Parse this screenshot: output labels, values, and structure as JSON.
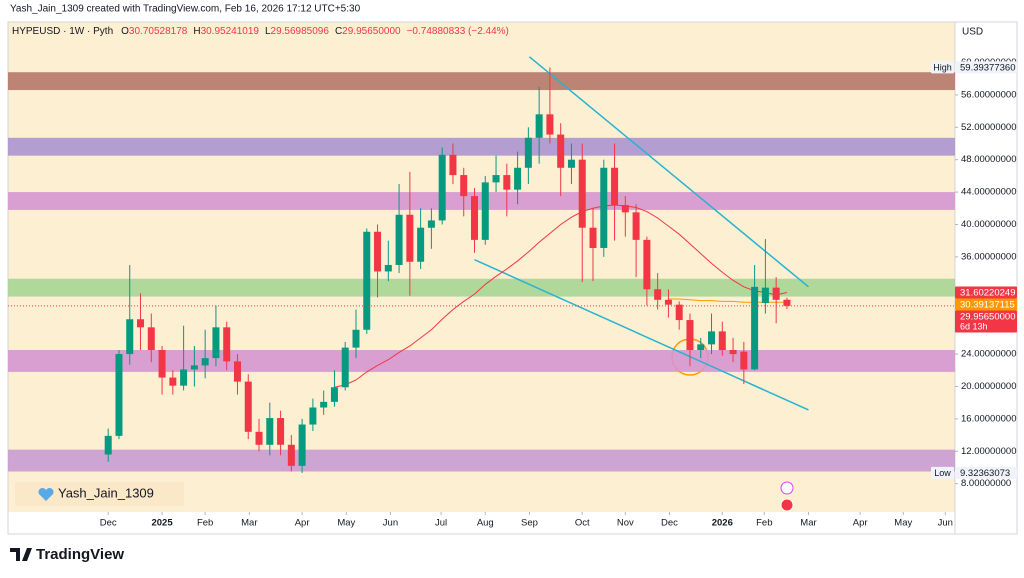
{
  "chart_data": {
    "type": "candlestick",
    "credit": "Yash_Jain_1309 created with TradingView.com, Feb 16, 2026 17:12 UTC+5:30",
    "symbol": "HYPEUSD · 1W · Pyth",
    "ohlc": [
      {
        "key": "O",
        "value": "30.70528178"
      },
      {
        "key": "H",
        "value": "30.95241019"
      },
      {
        "key": "L",
        "value": "29.56985096"
      },
      {
        "key": "C",
        "value": "29.95650000"
      }
    ],
    "change": "−0.74880833 (−2.44%)",
    "currency": "USD",
    "watermark": "Yash_Jain_1309",
    "brand": "TradingView",
    "ylim": [
      4.5,
      65
    ],
    "yticks": [
      {
        "value": 8,
        "label": "8.00000000"
      },
      {
        "value": 12,
        "label": "12.00000000"
      },
      {
        "value": 16,
        "label": "16.00000000"
      },
      {
        "value": 20,
        "label": "20.00000000"
      },
      {
        "value": 24,
        "label": "24.00000000"
      },
      {
        "value": 36,
        "label": "36.00000000"
      },
      {
        "value": 40,
        "label": "40.00000000"
      },
      {
        "value": 44,
        "label": "44.00000000"
      },
      {
        "value": 48,
        "label": "48.00000000"
      },
      {
        "value": 52,
        "label": "52.00000000"
      },
      {
        "value": 56,
        "label": "56.00000000"
      },
      {
        "value": 60,
        "label": "60.00000000"
      }
    ],
    "xlim": [
      -9.3,
      78.6
    ],
    "xticks": [
      {
        "value": 0,
        "label": "Dec"
      },
      {
        "value": 5,
        "label": "2025"
      },
      {
        "value": 9,
        "label": "Feb"
      },
      {
        "value": 13.1,
        "label": "Mar"
      },
      {
        "value": 18,
        "label": "Apr"
      },
      {
        "value": 22.1,
        "label": "May"
      },
      {
        "value": 26.2,
        "label": "Jun"
      },
      {
        "value": 30.9,
        "label": "Jul"
      },
      {
        "value": 35,
        "label": "Aug"
      },
      {
        "value": 39.1,
        "label": "Sep"
      },
      {
        "value": 44,
        "label": "Oct"
      },
      {
        "value": 48,
        "label": "Nov"
      },
      {
        "value": 52.1,
        "label": "Dec"
      },
      {
        "value": 57,
        "label": "2026"
      },
      {
        "value": 60.9,
        "label": "Feb"
      },
      {
        "value": 65,
        "label": "Mar"
      },
      {
        "value": 69.8,
        "label": "Apr"
      },
      {
        "value": 73.8,
        "label": "May"
      },
      {
        "value": 77.7,
        "label": "Jun"
      }
    ],
    "up_color": "#089981",
    "down_color": "#f23645",
    "candles": [
      {
        "o": 11.6,
        "h": 14.8,
        "l": 10.7,
        "c": 13.9
      },
      {
        "o": 13.9,
        "h": 24.5,
        "l": 13.5,
        "c": 24.0
      },
      {
        "o": 24.0,
        "h": 35.0,
        "l": 22.7,
        "c": 28.3
      },
      {
        "o": 28.3,
        "h": 31.5,
        "l": 24.5,
        "c": 27.3
      },
      {
        "o": 27.3,
        "h": 29.0,
        "l": 23.0,
        "c": 24.5
      },
      {
        "o": 24.5,
        "h": 25.0,
        "l": 19.0,
        "c": 21.1
      },
      {
        "o": 21.1,
        "h": 22.0,
        "l": 19.0,
        "c": 20.1
      },
      {
        "o": 20.1,
        "h": 27.5,
        "l": 19.5,
        "c": 22.1
      },
      {
        "o": 22.1,
        "h": 25.0,
        "l": 20.0,
        "c": 22.6
      },
      {
        "o": 22.6,
        "h": 27.0,
        "l": 21.0,
        "c": 23.5
      },
      {
        "o": 23.5,
        "h": 30.0,
        "l": 22.5,
        "c": 27.3
      },
      {
        "o": 27.3,
        "h": 28.0,
        "l": 22.0,
        "c": 23.1
      },
      {
        "o": 23.1,
        "h": 24.0,
        "l": 19.0,
        "c": 20.6
      },
      {
        "o": 20.6,
        "h": 21.5,
        "l": 13.5,
        "c": 14.4
      },
      {
        "o": 14.4,
        "h": 16.0,
        "l": 12.0,
        "c": 12.8
      },
      {
        "o": 12.8,
        "h": 18.0,
        "l": 11.5,
        "c": 16.1
      },
      {
        "o": 16.1,
        "h": 17.0,
        "l": 11.5,
        "c": 12.8
      },
      {
        "o": 12.8,
        "h": 14.0,
        "l": 9.5,
        "c": 10.2
      },
      {
        "o": 10.2,
        "h": 16.0,
        "l": 9.32363073,
        "c": 15.3
      },
      {
        "o": 15.3,
        "h": 18.5,
        "l": 14.5,
        "c": 17.4
      },
      {
        "o": 17.4,
        "h": 19.5,
        "l": 16.5,
        "c": 18.1
      },
      {
        "o": 18.1,
        "h": 22.0,
        "l": 17.5,
        "c": 19.9
      },
      {
        "o": 19.9,
        "h": 25.5,
        "l": 19.5,
        "c": 24.8
      },
      {
        "o": 24.8,
        "h": 29.5,
        "l": 23.5,
        "c": 27.0
      },
      {
        "o": 27.0,
        "h": 39.5,
        "l": 26.5,
        "c": 39.1
      },
      {
        "o": 39.1,
        "h": 40.0,
        "l": 31.0,
        "c": 34.2
      },
      {
        "o": 34.2,
        "h": 38.0,
        "l": 33.0,
        "c": 35.0
      },
      {
        "o": 35.0,
        "h": 45.0,
        "l": 34.0,
        "c": 41.2
      },
      {
        "o": 41.2,
        "h": 46.5,
        "l": 31.2,
        "c": 35.4
      },
      {
        "o": 35.4,
        "h": 42.0,
        "l": 34.5,
        "c": 39.6
      },
      {
        "o": 39.6,
        "h": 42.0,
        "l": 37.0,
        "c": 40.5
      },
      {
        "o": 40.5,
        "h": 49.5,
        "l": 40.0,
        "c": 48.6
      },
      {
        "o": 48.6,
        "h": 50.0,
        "l": 45.0,
        "c": 46.1
      },
      {
        "o": 46.1,
        "h": 47.0,
        "l": 41.0,
        "c": 43.5
      },
      {
        "o": 43.5,
        "h": 44.5,
        "l": 36.5,
        "c": 38.1
      },
      {
        "o": 38.1,
        "h": 46.0,
        "l": 37.5,
        "c": 45.2
      },
      {
        "o": 45.2,
        "h": 48.5,
        "l": 44.0,
        "c": 46.1
      },
      {
        "o": 46.1,
        "h": 47.5,
        "l": 41.0,
        "c": 44.3
      },
      {
        "o": 44.3,
        "h": 49.0,
        "l": 42.5,
        "c": 47.0
      },
      {
        "o": 47.0,
        "h": 52.0,
        "l": 45.0,
        "c": 50.7
      },
      {
        "o": 50.7,
        "h": 57.0,
        "l": 47.5,
        "c": 53.6
      },
      {
        "o": 53.6,
        "h": 59.3937736,
        "l": 50.0,
        "c": 51.1
      },
      {
        "o": 51.1,
        "h": 52.5,
        "l": 43.5,
        "c": 47.0
      },
      {
        "o": 47.0,
        "h": 50.0,
        "l": 45.0,
        "c": 48.0
      },
      {
        "o": 48.0,
        "h": 50.0,
        "l": 32.9,
        "c": 39.6
      },
      {
        "o": 39.6,
        "h": 42.0,
        "l": 33.0,
        "c": 37.1
      },
      {
        "o": 37.1,
        "h": 48.0,
        "l": 36.0,
        "c": 47.0
      },
      {
        "o": 47.0,
        "h": 50.0,
        "l": 38.0,
        "c": 42.4
      },
      {
        "o": 42.4,
        "h": 43.5,
        "l": 38.5,
        "c": 41.5
      },
      {
        "o": 41.5,
        "h": 42.5,
        "l": 33.5,
        "c": 38.1
      },
      {
        "o": 38.1,
        "h": 38.5,
        "l": 30.0,
        "c": 32.0
      },
      {
        "o": 32.0,
        "h": 34.0,
        "l": 29.5,
        "c": 30.7
      },
      {
        "o": 30.7,
        "h": 32.0,
        "l": 28.5,
        "c": 30.1
      },
      {
        "o": 30.1,
        "h": 30.5,
        "l": 27.0,
        "c": 28.2
      },
      {
        "o": 28.2,
        "h": 29.0,
        "l": 22.5,
        "c": 24.5
      },
      {
        "o": 24.5,
        "h": 26.0,
        "l": 23.5,
        "c": 25.2
      },
      {
        "o": 25.2,
        "h": 29.0,
        "l": 24.0,
        "c": 26.8
      },
      {
        "o": 26.8,
        "h": 28.0,
        "l": 23.8,
        "c": 24.5
      },
      {
        "o": 24.5,
        "h": 26.0,
        "l": 23.0,
        "c": 24.0
      },
      {
        "o": 24.3,
        "h": 25.5,
        "l": 20.3,
        "c": 22.1
      },
      {
        "o": 22.1,
        "h": 35.0,
        "l": 22.0,
        "c": 32.3
      },
      {
        "o": 30.3,
        "h": 38.2,
        "l": 29.0,
        "c": 32.2
      },
      {
        "o": 32.2,
        "h": 33.5,
        "l": 27.8,
        "c": 30.7
      },
      {
        "o": 30.70528178,
        "h": 30.95241019,
        "l": 29.56985096,
        "c": 29.9565
      }
    ],
    "indicators": [
      {
        "color": "#f23645",
        "values": [
          null,
          null,
          null,
          null,
          null,
          null,
          null,
          null,
          null,
          null,
          null,
          null,
          null,
          null,
          null,
          null,
          null,
          null,
          null,
          null,
          null,
          19.9,
          20.2,
          20.8,
          21.8,
          22.6,
          23.3,
          24.2,
          25,
          26,
          27,
          28.3,
          29.5,
          30.5,
          31.4,
          32.6,
          33.6,
          34.5,
          35.5,
          36.6,
          37.8,
          38.9,
          40,
          40.9,
          41.6,
          42,
          42.3,
          42.4,
          42.3,
          42.1,
          41.6,
          40.8,
          39.8,
          38.8,
          37.6,
          36.4,
          35.2,
          34.1,
          33.1,
          32.3,
          31.8,
          31.6,
          31.3,
          31.6
        ]
      },
      {
        "color": "#ff9800",
        "values": [
          null,
          null,
          null,
          null,
          null,
          null,
          null,
          null,
          null,
          null,
          null,
          null,
          null,
          null,
          null,
          null,
          null,
          null,
          null,
          null,
          null,
          null,
          null,
          null,
          null,
          null,
          null,
          null,
          null,
          null,
          null,
          null,
          null,
          null,
          null,
          null,
          null,
          null,
          null,
          null,
          null,
          null,
          null,
          null,
          null,
          null,
          null,
          null,
          null,
          null,
          null,
          null,
          30.8,
          30.8,
          30.7,
          30.6,
          30.6,
          30.5,
          30.5,
          30.4,
          30.4,
          30.4,
          30.4,
          30.39
        ]
      }
    ],
    "zones": [
      {
        "from": 56.6,
        "to": 58.8,
        "color": "#b5786a"
      },
      {
        "from": 48.5,
        "to": 50.7,
        "color": "#ab93d0"
      },
      {
        "from": 41.8,
        "to": 44.0,
        "color": "#d596cf"
      },
      {
        "from": 31.1,
        "to": 33.3,
        "color": "#a7d594"
      },
      {
        "from": 21.8,
        "to": 24.5,
        "color": "#d596cf"
      },
      {
        "from": 9.5,
        "to": 12.2,
        "color": "#c99bd3"
      }
    ],
    "trendlines": [
      {
        "x": [
          39.1,
          65.0
        ],
        "y": [
          60.7,
          32.3
        ],
        "color": "#27b3d1"
      },
      {
        "x": [
          34.0,
          65.0
        ],
        "y": [
          35.65,
          17.1
        ],
        "color": "#27b3d1"
      }
    ],
    "price_labels": [
      {
        "value": 59.3937736,
        "label": "59.39377360",
        "tag": "High",
        "bg": "#f0f3fa",
        "fg": "#131722"
      },
      {
        "value": 31.60220249,
        "label": "31.60220249",
        "bg": "#f23645",
        "fg": "#ffffff"
      },
      {
        "value": 30.39137115,
        "label": "30.39137115",
        "bg": "#ff9800",
        "fg": "#ffffff"
      },
      {
        "value": 29.9565,
        "label": "29.95650000",
        "sub": "6d 13h",
        "bg": "#f23645",
        "fg": "#ffffff"
      },
      {
        "value": 9.32363073,
        "label": "9.32363073",
        "tag": "Low",
        "bg": "#f0f3fa",
        "fg": "#131722"
      }
    ]
  }
}
